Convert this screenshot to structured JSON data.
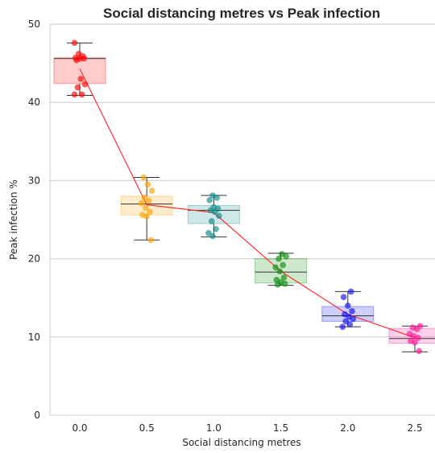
{
  "chart_data": {
    "type": "box",
    "title": "Social distancing metres vs Peak infection",
    "xlabel": "Social distancing metres",
    "ylabel": "Peak infection %",
    "ylim": [
      0,
      50
    ],
    "yticks": [
      "0",
      "10",
      "20",
      "30",
      "40",
      "50"
    ],
    "categories": [
      "0.0",
      "0.5",
      "1.0",
      "1.5",
      "2.0",
      "2.5"
    ],
    "grid": "horizontal",
    "colors": [
      "#ff0000",
      "#ff9f00",
      "#0a8a8a",
      "#0a8a0a",
      "#1010ee",
      "#ff1493"
    ],
    "mean_line_color": "#ff3030",
    "boxes": [
      {
        "whislo": 40.9,
        "q1": 42.4,
        "med": 45.6,
        "q3": 45.7,
        "whishi": 47.6,
        "mean": 44.3,
        "points": [
          47.6,
          46.2,
          45.9,
          45.7,
          45.6,
          45.6,
          45.4,
          43.0,
          42.3,
          41.9,
          41.0,
          41.0
        ]
      },
      {
        "whislo": 22.4,
        "q1": 25.6,
        "med": 27.0,
        "q3": 28.0,
        "whishi": 30.4,
        "mean": 26.9,
        "points": [
          30.4,
          29.5,
          28.7,
          27.8,
          27.4,
          27.1,
          26.5,
          26.0,
          25.6,
          25.4,
          22.4
        ]
      },
      {
        "whislo": 22.8,
        "q1": 24.5,
        "med": 26.2,
        "q3": 26.8,
        "whishi": 28.1,
        "mean": 25.9,
        "points": [
          28.1,
          27.8,
          27.5,
          26.6,
          26.4,
          26.2,
          26.0,
          25.5,
          24.8,
          23.8,
          23.3,
          22.9
        ]
      },
      {
        "whislo": 16.6,
        "q1": 16.9,
        "med": 18.3,
        "q3": 20.0,
        "whishi": 20.7,
        "mean": 18.4,
        "points": [
          20.6,
          20.3,
          20.0,
          19.2,
          18.9,
          18.4,
          17.6,
          17.3,
          17.0,
          16.8,
          16.7
        ]
      },
      {
        "whislo": 11.3,
        "q1": 12.0,
        "med": 12.7,
        "q3": 13.9,
        "whishi": 15.8,
        "mean": 12.9,
        "points": [
          15.8,
          15.1,
          14.0,
          13.3,
          12.9,
          12.6,
          12.3,
          12.0,
          11.6,
          11.3
        ]
      },
      {
        "whislo": 8.1,
        "q1": 9.2,
        "med": 9.8,
        "q3": 11.1,
        "whishi": 11.4,
        "mean": 9.9,
        "points": [
          11.4,
          11.2,
          11.0,
          10.4,
          10.1,
          9.9,
          9.5,
          9.3,
          8.2
        ]
      }
    ]
  }
}
